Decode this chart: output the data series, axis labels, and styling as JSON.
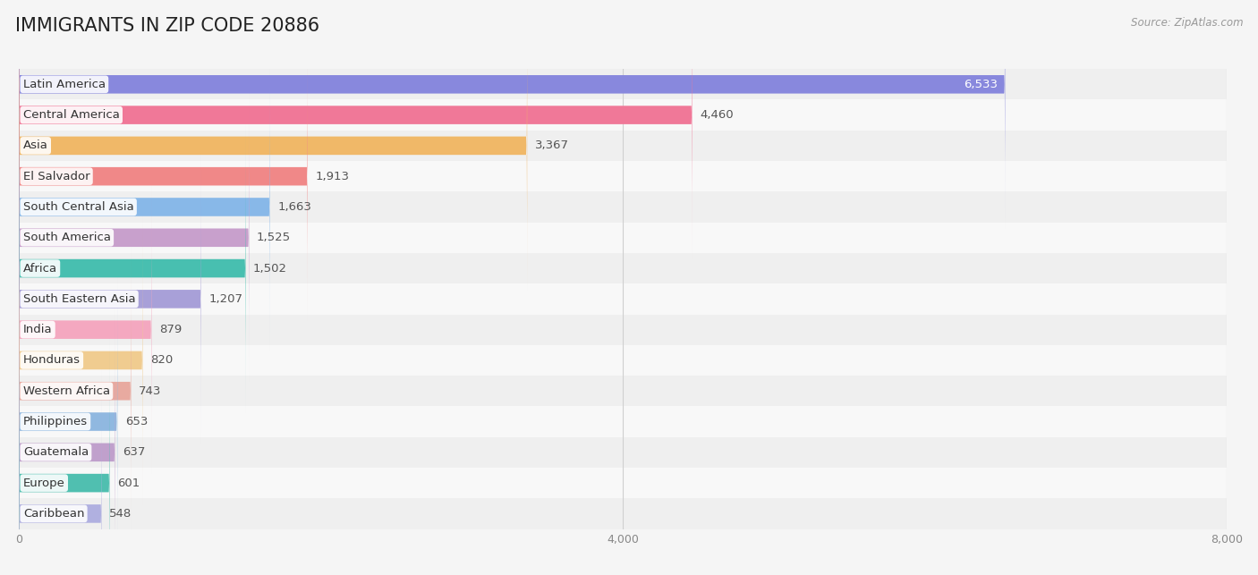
{
  "title": "IMMIGRANTS IN ZIP CODE 20886",
  "source": "Source: ZipAtlas.com",
  "categories": [
    "Latin America",
    "Central America",
    "Asia",
    "El Salvador",
    "South Central Asia",
    "South America",
    "Africa",
    "South Eastern Asia",
    "India",
    "Honduras",
    "Western Africa",
    "Philippines",
    "Guatemala",
    "Europe",
    "Caribbean"
  ],
  "values": [
    6533,
    4460,
    3367,
    1913,
    1663,
    1525,
    1502,
    1207,
    879,
    820,
    743,
    653,
    637,
    601,
    548
  ],
  "colors": [
    "#8888dd",
    "#f07898",
    "#f0b868",
    "#f08888",
    "#88b8e8",
    "#c8a0cc",
    "#48bfb0",
    "#a8a0d8",
    "#f4a8c0",
    "#f0cc90",
    "#e8aaa0",
    "#90b8e0",
    "#c0a0cc",
    "#50bfb0",
    "#b0b0e0"
  ],
  "xlim": [
    0,
    8000
  ],
  "xticks": [
    0,
    4000,
    8000
  ],
  "row_bg_odd": "#efefef",
  "row_bg_even": "#f8f8f8",
  "background_color": "#f5f5f5",
  "title_fontsize": 15,
  "label_fontsize": 9.5,
  "value_fontsize": 9.5
}
